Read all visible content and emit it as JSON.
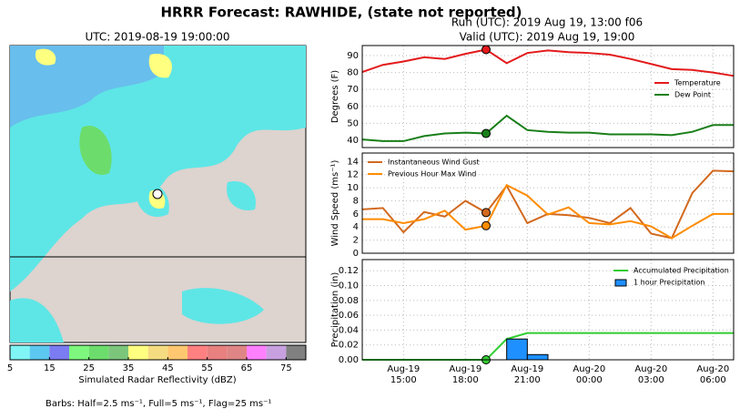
{
  "title": "HRRR Forecast: RAWHIDE, (state not reported)",
  "map": {
    "title": "UTC: 2019-08-19 19:00:00",
    "colorbar": {
      "label": "Simulated Radar Reflectivity (dBZ)",
      "lim": [
        5,
        80
      ],
      "ticks": [
        5,
        15,
        25,
        35,
        45,
        55,
        65,
        75
      ],
      "colors": [
        "#7ff5f5",
        "#5cc8f0",
        "#7b7bf2",
        "#7df77d",
        "#6cdd6c",
        "#7cc67c",
        "#ffff80",
        "#f5dc80",
        "#ffc870",
        "#ff8080",
        "#e88080",
        "#e08585",
        "#ff80ff",
        "#c8a0e0",
        "#808080"
      ]
    },
    "note": "Barbs: Half=2.5 ms⁻¹, Full=5 ms⁻¹, Flag=25 ms⁻¹"
  },
  "chart_data": [
    {
      "type": "line",
      "title": "Run (UTC): 2019 Aug 19, 13:00 f06",
      "subtitle": "Valid (UTC): 2019 Aug 19, 19:00",
      "y_label": "Degrees (F)",
      "legend": "center right",
      "grid": true,
      "highlight_x": "Aug-19 19:00",
      "x": [
        "Aug-19 13:00",
        "Aug-19 14:00",
        "Aug-19 15:00",
        "Aug-19 16:00",
        "Aug-19 17:00",
        "Aug-19 18:00",
        "Aug-19 19:00",
        "Aug-19 20:00",
        "Aug-19 21:00",
        "Aug-19 22:00",
        "Aug-19 23:00",
        "Aug-20 00:00",
        "Aug-20 01:00",
        "Aug-20 02:00",
        "Aug-20 03:00",
        "Aug-20 04:00",
        "Aug-20 05:00",
        "Aug-20 06:00",
        "Aug-20 07:00"
      ],
      "xticks": [
        "Aug-19 15:00",
        "Aug-19 18:00",
        "Aug-19 21:00",
        "Aug-20 00:00",
        "Aug-20 03:00",
        "Aug-20 06:00"
      ],
      "ylim": [
        35.7,
        95.9
      ],
      "yticks": [
        40,
        50,
        60,
        70,
        80,
        90
      ],
      "series": [
        {
          "name": "Temperature",
          "color": "#e31a1c",
          "values": [
            80.3,
            84.5,
            86.5,
            89,
            88,
            91,
            93.5,
            85.5,
            91.5,
            93,
            92,
            91.5,
            90.5,
            88,
            85,
            82,
            81.5,
            80,
            78
          ]
        },
        {
          "name": "Dew Point",
          "color": "#1a7f1a",
          "values": [
            40.5,
            39.5,
            39.5,
            42.5,
            44,
            44.5,
            44,
            54.5,
            46,
            45,
            44.5,
            44.5,
            43.5,
            43.5,
            43.5,
            43,
            45,
            49,
            49
          ]
        }
      ]
    },
    {
      "type": "line",
      "y_label": "Wind Speed (ms⁻¹)",
      "legend": "upper left",
      "grid": true,
      "highlight_x": "Aug-19 19:00",
      "x": [
        "Aug-19 13:00",
        "Aug-19 14:00",
        "Aug-19 15:00",
        "Aug-19 16:00",
        "Aug-19 17:00",
        "Aug-19 18:00",
        "Aug-19 19:00",
        "Aug-19 20:00",
        "Aug-19 21:00",
        "Aug-19 22:00",
        "Aug-19 23:00",
        "Aug-20 00:00",
        "Aug-20 01:00",
        "Aug-20 02:00",
        "Aug-20 03:00",
        "Aug-20 04:00",
        "Aug-20 05:00",
        "Aug-20 06:00",
        "Aug-20 07:00"
      ],
      "xticks": [
        "Aug-19 15:00",
        "Aug-19 18:00",
        "Aug-19 21:00",
        "Aug-20 00:00",
        "Aug-20 03:00",
        "Aug-20 06:00"
      ],
      "ylim": [
        0,
        15.3
      ],
      "yticks": [
        0,
        2,
        4,
        6,
        8,
        10,
        12,
        14
      ],
      "series": [
        {
          "name": "Instantaneous Wind Gust",
          "color": "#d2691e",
          "values": [
            6.7,
            6.9,
            3.2,
            6.3,
            5.6,
            8,
            6.2,
            10.3,
            4.6,
            6,
            5.8,
            5.4,
            4.6,
            6.9,
            3,
            2.3,
            9.2,
            12.6,
            12.5
          ]
        },
        {
          "name": "Previous Hour Max Wind",
          "color": "#ff8c00",
          "values": [
            5.2,
            5.2,
            4.6,
            5.2,
            6.5,
            3.6,
            4.2,
            10.4,
            8.8,
            5.9,
            7,
            4.6,
            4.4,
            4.9,
            4.1,
            2.3,
            4.2,
            6,
            6
          ]
        }
      ]
    },
    {
      "type": "line",
      "y_label": "Precipitation (in)",
      "legend": "upper right",
      "grid": true,
      "highlight_x": "Aug-19 19:00",
      "x": [
        "Aug-19 13:00",
        "Aug-19 14:00",
        "Aug-19 15:00",
        "Aug-19 16:00",
        "Aug-19 17:00",
        "Aug-19 18:00",
        "Aug-19 19:00",
        "Aug-19 20:00",
        "Aug-19 21:00",
        "Aug-19 22:00",
        "Aug-19 23:00",
        "Aug-20 00:00",
        "Aug-20 01:00",
        "Aug-20 02:00",
        "Aug-20 03:00",
        "Aug-20 04:00",
        "Aug-20 05:00",
        "Aug-20 06:00",
        "Aug-20 07:00"
      ],
      "xticks": [
        "Aug-19 15:00",
        "Aug-19 18:00",
        "Aug-19 21:00",
        "Aug-20 00:00",
        "Aug-20 03:00",
        "Aug-20 06:00"
      ],
      "ylim": [
        0,
        0.135
      ],
      "yticks": [
        {
          "value": 0,
          "label": "0.00"
        },
        {
          "value": 0.02,
          "label": "0.02"
        },
        {
          "value": 0.04,
          "label": "0.04"
        },
        {
          "value": 0.06,
          "label": "0.06"
        },
        {
          "value": 0.08,
          "label": "0.08"
        },
        {
          "value": 0.1,
          "label": "0.10"
        },
        {
          "value": 0.12,
          "label": "0.12"
        }
      ],
      "series": [
        {
          "name": "Accumulated Precipitation",
          "color": "#32cd32",
          "type": "line",
          "values": [
            0,
            0,
            0,
            0,
            0,
            0,
            0,
            0.028,
            0.036,
            0.036,
            0.036,
            0.036,
            0.036,
            0.036,
            0.036,
            0.036,
            0.036,
            0.036,
            0.036
          ]
        },
        {
          "name": "1 hour Precipitation",
          "color": "#1e90ff",
          "type": "bar",
          "values": [
            0,
            0,
            0,
            0,
            0,
            0,
            0,
            0.028,
            0.007,
            0,
            0,
            0,
            0,
            0,
            0,
            0,
            0,
            0,
            0
          ]
        }
      ]
    }
  ]
}
